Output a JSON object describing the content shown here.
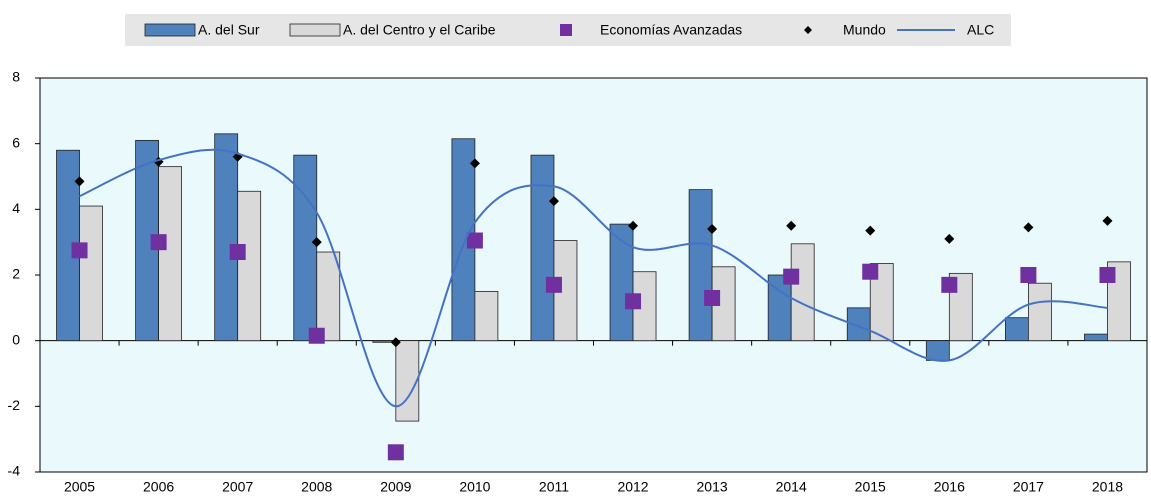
{
  "chart_data": {
    "type": "bar-line",
    "categories": [
      "2005",
      "2006",
      "2007",
      "2008",
      "2009",
      "2010",
      "2011",
      "2012",
      "2013",
      "2014",
      "2015",
      "2016",
      "2017",
      "2018"
    ],
    "series": [
      {
        "name": "A. del Sur",
        "type": "bar",
        "color": "#4f81bd",
        "values": [
          5.8,
          6.1,
          6.3,
          5.65,
          -0.05,
          6.15,
          5.65,
          3.55,
          4.6,
          2.0,
          1.0,
          -0.6,
          0.7,
          0.2
        ]
      },
      {
        "name": "A. del Centro y el Caribe",
        "type": "bar",
        "color": "#d9d9d9",
        "values": [
          4.1,
          5.3,
          4.55,
          2.7,
          -2.45,
          1.5,
          3.05,
          2.1,
          2.25,
          2.95,
          2.35,
          2.05,
          1.75,
          2.4
        ]
      },
      {
        "name": "Economías Avanzadas",
        "type": "square",
        "color": "#7030a0",
        "values": [
          2.75,
          3.0,
          2.7,
          0.15,
          -3.4,
          3.05,
          1.7,
          1.2,
          1.3,
          1.95,
          2.1,
          1.7,
          2.0,
          2.0
        ]
      },
      {
        "name": "Mundo",
        "type": "diamond",
        "color": "#000000",
        "values": [
          4.85,
          5.45,
          5.6,
          3.0,
          -0.05,
          5.4,
          4.25,
          3.5,
          3.4,
          3.5,
          3.35,
          3.1,
          3.45,
          3.65
        ]
      },
      {
        "name": "ALC",
        "type": "line",
        "color": "#4472c4",
        "values": [
          4.4,
          5.5,
          5.7,
          3.9,
          -2.0,
          3.6,
          4.7,
          2.85,
          2.9,
          1.3,
          0.3,
          -0.6,
          1.1,
          1.0
        ]
      }
    ],
    "ylim": [
      -4,
      8
    ],
    "yticks": [
      -4,
      -2,
      0,
      2,
      4,
      6,
      8
    ]
  }
}
